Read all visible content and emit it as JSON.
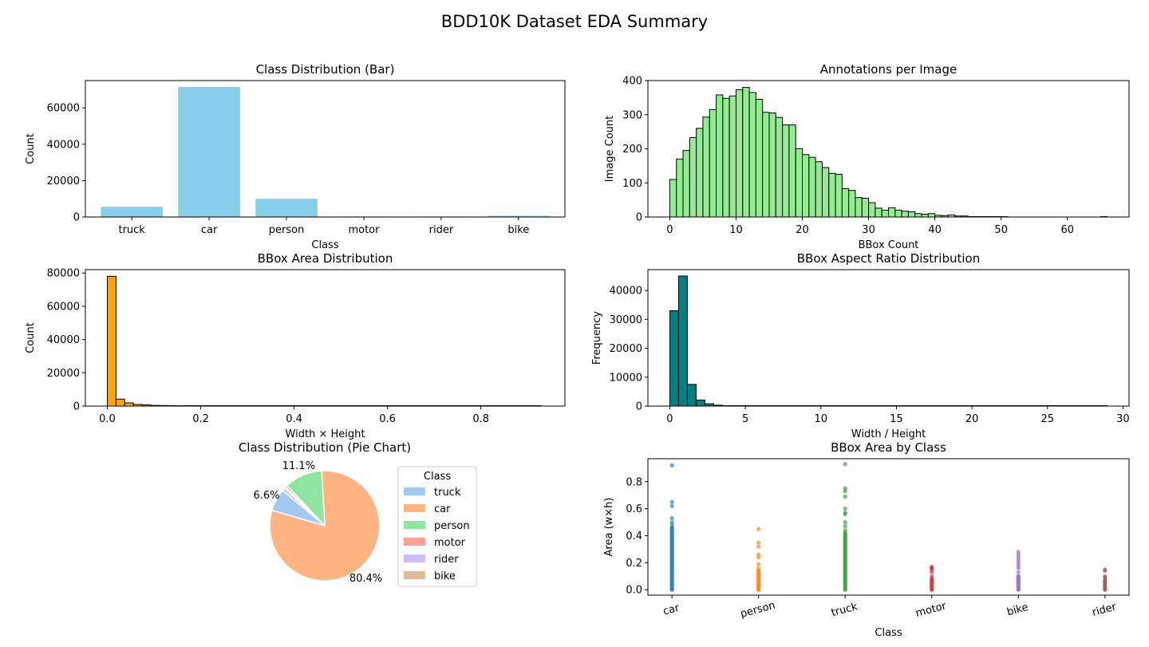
{
  "figure": {
    "suptitle": "BDD10K Dataset EDA Summary"
  },
  "chart_data": [
    {
      "id": "class_bar",
      "type": "bar",
      "title": "Class Distribution (Bar)",
      "xlabel": "Class",
      "ylabel": "Count",
      "categories": [
        "truck",
        "car",
        "person",
        "motor",
        "rider",
        "bike"
      ],
      "values": [
        5600,
        71500,
        10000,
        300,
        300,
        700
      ],
      "ylim": [
        0,
        75000
      ],
      "yticks": [
        0,
        20000,
        40000,
        60000
      ],
      "color": "#87ceeb",
      "grid": false
    },
    {
      "id": "ann_hist",
      "type": "bar",
      "title": "Annotations per Image",
      "xlabel": "BBox Count",
      "ylabel": "Image Count",
      "bin_start": 0,
      "bin_width": 1.0,
      "values": [
        110,
        170,
        195,
        233,
        260,
        293,
        315,
        358,
        348,
        355,
        373,
        380,
        365,
        345,
        307,
        305,
        292,
        270,
        270,
        200,
        183,
        175,
        162,
        145,
        128,
        125,
        83,
        78,
        57,
        55,
        42,
        26,
        20,
        27,
        20,
        17,
        15,
        10,
        8,
        10,
        5,
        4,
        6,
        3,
        3,
        1,
        1,
        1,
        1,
        1,
        1,
        0,
        0,
        0,
        0,
        0,
        0,
        0,
        0,
        0,
        0,
        0,
        0,
        0,
        0,
        1
      ],
      "xlim": [
        -3.3,
        69.3
      ],
      "ylim": [
        0,
        400
      ],
      "xticks": [
        0,
        10,
        20,
        30,
        40,
        50,
        60
      ],
      "yticks": [
        0,
        100,
        200,
        300,
        400
      ],
      "color": "#90ee90",
      "edgecolor": "#000000",
      "grid": false
    },
    {
      "id": "area_hist",
      "type": "bar",
      "title": "BBox Area Distribution",
      "xlabel": "Width × Height",
      "ylabel": "Count",
      "bin_start": 0,
      "bin_width": 0.0186,
      "values": [
        78000,
        4200,
        1900,
        1000,
        700,
        400,
        350,
        250,
        200
      ],
      "xlim": [
        -0.047,
        0.98
      ],
      "ylim": [
        0,
        82000
      ],
      "xticks": [
        0.0,
        0.2,
        0.4,
        0.6,
        0.8
      ],
      "xtick_labels": [
        "0.0",
        "0.2",
        "0.4",
        "0.6",
        "0.8"
      ],
      "yticks": [
        0,
        20000,
        40000,
        60000,
        80000
      ],
      "tail_to": 0.93,
      "color": "#ffa500",
      "edgecolor": "#000000",
      "grid": false
    },
    {
      "id": "aspect_hist",
      "type": "bar",
      "title": "BBox Aspect Ratio Distribution",
      "xlabel": "Width / Height",
      "ylabel": "Frequency",
      "bin_start": 0,
      "bin_width": 0.58,
      "values": [
        33000,
        45000,
        7500,
        2100,
        800,
        300,
        150
      ],
      "xlim": [
        -1.45,
        30.4
      ],
      "ylim": [
        0,
        47200
      ],
      "xticks": [
        0,
        5,
        10,
        15,
        20,
        25,
        30
      ],
      "yticks": [
        0,
        10000,
        20000,
        30000,
        40000
      ],
      "tail_to": 29.0,
      "color": "#008080",
      "edgecolor": "#000000",
      "grid": false
    },
    {
      "id": "class_pie",
      "type": "pie",
      "title": "Class Distribution (Pie Chart)",
      "legend_title": "Class",
      "legend_position": "right",
      "slices": [
        {
          "label": "truck",
          "value": 6.6,
          "pct_label": "6.6%",
          "color": "#a1c9f4"
        },
        {
          "label": "car",
          "value": 80.4,
          "pct_label": "80.4%",
          "color": "#ffb482"
        },
        {
          "label": "person",
          "value": 11.1,
          "pct_label": "11.1%",
          "color": "#8de5a1"
        },
        {
          "label": "motor",
          "value": 0.6,
          "pct_label": "",
          "color": "#ff9f9b"
        },
        {
          "label": "rider",
          "value": 0.5,
          "pct_label": "",
          "color": "#d0bbff"
        },
        {
          "label": "bike",
          "value": 0.8,
          "pct_label": "",
          "color": "#debb9b"
        }
      ]
    },
    {
      "id": "area_by_class",
      "type": "scatter",
      "title": "BBox Area by Class",
      "xlabel": "Class",
      "ylabel": "Area (w×h)",
      "categories": [
        "car",
        "person",
        "truck",
        "motor",
        "bike",
        "rider"
      ],
      "ylim": [
        -0.04,
        0.97
      ],
      "yticks": [
        0.0,
        0.2,
        0.4,
        0.6,
        0.8
      ],
      "ytick_labels": [
        "0.0",
        "0.2",
        "0.4",
        "0.6",
        "0.8"
      ],
      "series": [
        {
          "category": "car",
          "color": "#1f77b4",
          "dense_max": 0.46,
          "outliers": [
            0.92,
            0.65,
            0.62,
            0.53,
            0.5,
            0.48
          ]
        },
        {
          "category": "person",
          "color": "#ff7f0e",
          "dense_max": 0.14,
          "outliers": [
            0.45,
            0.35,
            0.32,
            0.26,
            0.24,
            0.19,
            0.16
          ]
        },
        {
          "category": "truck",
          "color": "#2ca02c",
          "dense_max": 0.42,
          "outliers": [
            0.93,
            0.75,
            0.73,
            0.69,
            0.6,
            0.57,
            0.56,
            0.5,
            0.47,
            0.44
          ]
        },
        {
          "category": "motor",
          "color": "#d62728",
          "dense_max": 0.08,
          "outliers": [
            0.17,
            0.16,
            0.15,
            0.13,
            0.1
          ]
        },
        {
          "category": "bike",
          "color": "#9467bd",
          "dense_max": 0.1,
          "outliers": [
            0.28,
            0.26,
            0.24,
            0.22,
            0.2,
            0.18,
            0.16,
            0.13
          ]
        },
        {
          "category": "rider",
          "color": "#8c564b",
          "dense_max": 0.07,
          "outliers": [
            0.15,
            0.14,
            0.1,
            0.09
          ]
        }
      ]
    }
  ]
}
